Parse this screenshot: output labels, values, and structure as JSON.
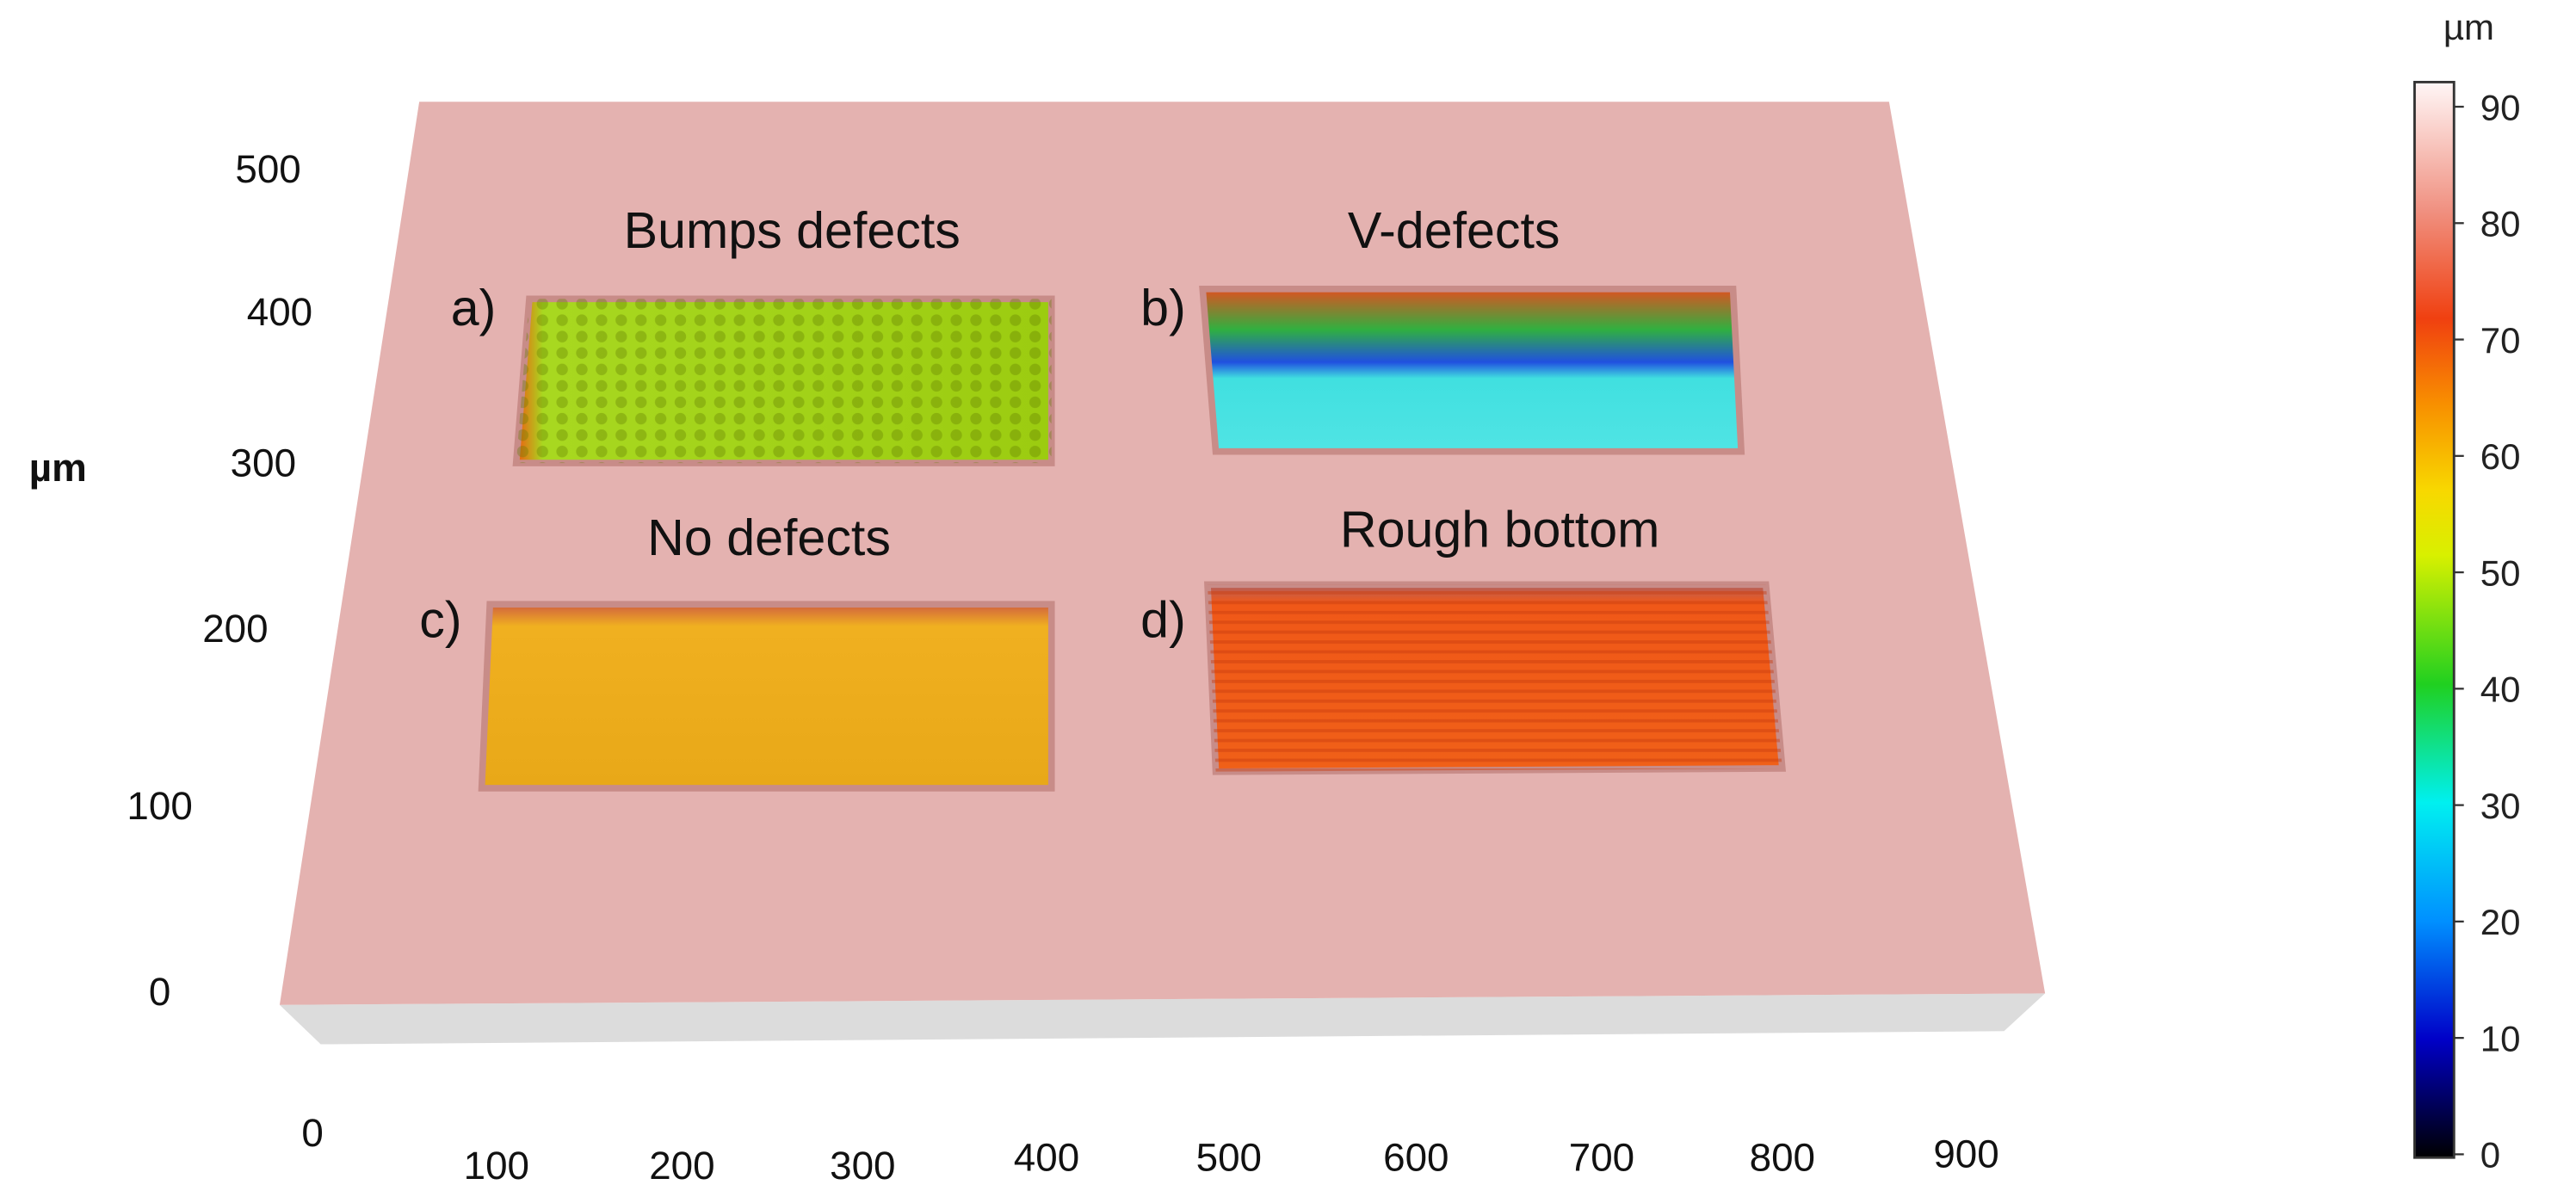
{
  "pockets": [
    {
      "letter": "a)",
      "title": "Bumps defects"
    },
    {
      "letter": "b)",
      "title": "V-defects"
    },
    {
      "letter": "c)",
      "title": "No defects"
    },
    {
      "letter": "d)",
      "title": "Rough bottom"
    }
  ],
  "y_axis": {
    "unit": "µm",
    "ticks": [
      "0",
      "100",
      "200",
      "300",
      "400",
      "500"
    ]
  },
  "x_axis": {
    "ticks": [
      "0",
      "100",
      "200",
      "300",
      "400",
      "500",
      "600",
      "700",
      "800",
      "900"
    ]
  },
  "colorbar": {
    "unit": "µm",
    "ticks": [
      "0",
      "10",
      "20",
      "30",
      "40",
      "50",
      "60",
      "70",
      "80",
      "90"
    ]
  }
}
